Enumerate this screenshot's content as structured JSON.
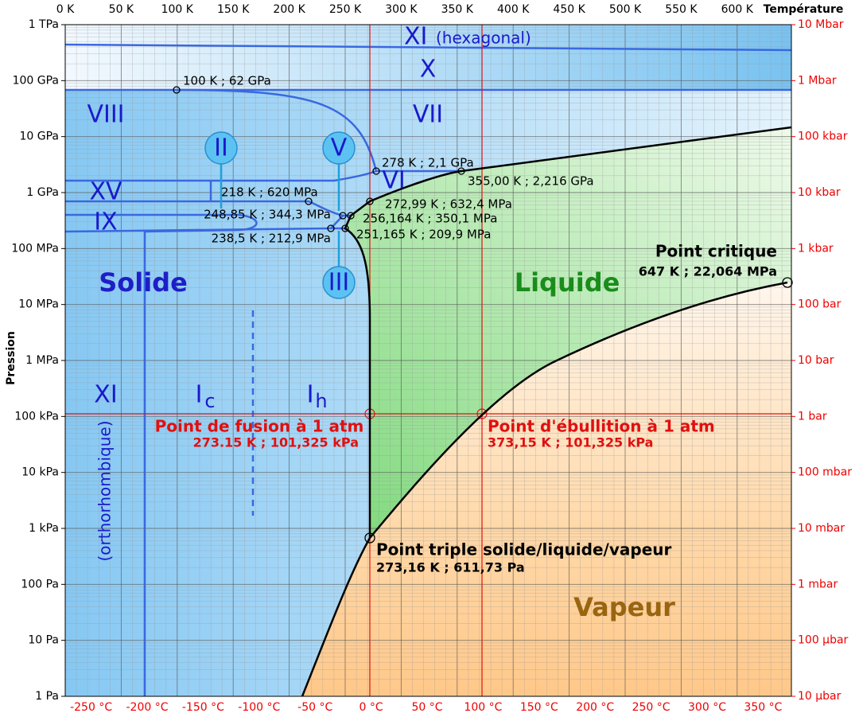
{
  "axes": {
    "x_label": "Température",
    "y_label": "Pression",
    "top_ticks": [
      "0 K",
      "50 K",
      "100 K",
      "150 K",
      "200 K",
      "250 K",
      "300 K",
      "350 K",
      "400 K",
      "450 K",
      "500 K",
      "550 K",
      "600 K"
    ],
    "bottom_ticks": [
      "-250 °C",
      "-200 °C",
      "-150 °C",
      "-100 °C",
      "-50 °C",
      "0 °C",
      "50 °C",
      "100 °C",
      "150 °C",
      "200 °C",
      "250 °C",
      "300 °C",
      "350 °C"
    ],
    "left_ticks": [
      "1 TPa",
      "100 GPa",
      "10 GPa",
      "1 GPa",
      "100 MPa",
      "10 MPa",
      "1 MPa",
      "100 kPa",
      "10 kPa",
      "1 kPa",
      "100 Pa",
      "10 Pa",
      "1 Pa"
    ],
    "right_ticks": [
      "10 Mbar",
      "1 Mbar",
      "100 kbar",
      "10 kbar",
      "1 kbar",
      "100 bar",
      "10 bar",
      "1 bar",
      "100 mbar",
      "10 mbar",
      "1 mbar",
      "100 µbar",
      "10 µbar"
    ]
  },
  "regions": [
    "Solide",
    "Liquide",
    "Vapeur"
  ],
  "ice_phases": [
    "XI",
    "(hexagonal)",
    "X",
    "VIII",
    "VII",
    "VI",
    "XV",
    "IX",
    "II",
    "V",
    "III",
    "XI",
    "(orthorhombique)",
    "I",
    "c",
    "I",
    "h"
  ],
  "points": [
    "100 K ; 62 GPa",
    "278 K ; 2,1 GPa",
    "355,00 K ; 2,216 GPa",
    "218 K ; 620 MPa",
    "272,99 K ; 632,4 MPa",
    "248,85 K ; 344,3 MPa",
    "256,164 K ; 350,1 MPa",
    "238,5 K ; 212,9 MPa",
    "251,165 K ; 209,9 MPa"
  ],
  "landmarks": [
    {
      "title": "Point critique",
      "value": "647 K ; 22,064 MPa"
    },
    {
      "title": "Point de fusion à 1 atm",
      "value": "273.15 K ; 101,325 kPa"
    },
    {
      "title": "Point d'ébullition à 1 atm",
      "value": "373,15 K ; 101,325 kPa"
    },
    {
      "title": "Point triple solide/liquide/vapeur",
      "value": "273,16 K ; 611,73 Pa"
    }
  ]
}
